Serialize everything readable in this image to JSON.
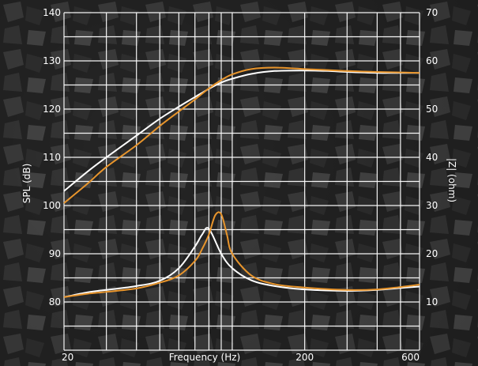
{
  "chart_data": {
    "type": "line",
    "title": "",
    "xlabel": "Frequency (Hz)",
    "ylabel_left": "SPL (dB)",
    "ylabel_right": "|Z| (ohm)",
    "x_scale": "log",
    "xlim": [
      20,
      600
    ],
    "ylim_left": [
      70,
      140
    ],
    "ylim_right": [
      0,
      70
    ],
    "x_tick_labels": [
      "20",
      "200",
      "600"
    ],
    "x_ticks": [
      20,
      200,
      600
    ],
    "y_left_ticks": [
      80,
      90,
      100,
      110,
      120,
      130,
      140
    ],
    "y_right_ticks": [
      10,
      20,
      30,
      40,
      50,
      60,
      70
    ],
    "grid": true,
    "colors": {
      "white": "#ffffff",
      "orange": "#e8952c",
      "grid": "#ffffff"
    },
    "series": [
      {
        "axis": "left",
        "color": "#ffffff",
        "x": [
          20,
          25,
          30,
          40,
          50,
          60,
          70,
          80,
          90,
          100,
          120,
          150,
          200,
          250,
          300,
          400,
          500,
          600
        ],
        "y": [
          103,
          107,
          110,
          114.5,
          118,
          120.5,
          122.5,
          124.2,
          125.5,
          126.3,
          127.3,
          127.9,
          128.0,
          127.9,
          127.7,
          127.5,
          127.5,
          127.5
        ]
      },
      {
        "axis": "left",
        "color": "#e8952c",
        "x": [
          20,
          25,
          30,
          40,
          50,
          60,
          70,
          80,
          90,
          100,
          120,
          150,
          200,
          250,
          300,
          400,
          500,
          600
        ],
        "y": [
          100.5,
          104.5,
          108,
          112.5,
          116.5,
          119.5,
          122,
          124.3,
          126,
          127.2,
          128.3,
          128.6,
          128.3,
          128.1,
          127.9,
          127.7,
          127.6,
          127.5
        ]
      },
      {
        "axis": "right",
        "color": "#ffffff",
        "x": [
          20,
          25,
          30,
          40,
          50,
          60,
          70,
          75,
          80,
          90,
          100,
          120,
          150,
          200,
          300,
          400,
          500,
          600
        ],
        "y": [
          11,
          12,
          12.5,
          13.3,
          14.4,
          17,
          21.5,
          24,
          25.2,
          20,
          17,
          14.5,
          13.3,
          12.6,
          12.3,
          12.5,
          12.9,
          13.2
        ]
      },
      {
        "axis": "right",
        "color": "#e8952c",
        "x": [
          20,
          25,
          30,
          40,
          50,
          60,
          70,
          75,
          80,
          85,
          90,
          95,
          100,
          120,
          150,
          200,
          300,
          400,
          500,
          600
        ],
        "y": [
          11,
          11.7,
          12.1,
          12.8,
          14,
          15.5,
          18.5,
          21,
          24,
          28,
          28.2,
          24,
          20,
          15.5,
          13.7,
          13,
          12.5,
          12.6,
          13.1,
          13.6
        ]
      }
    ]
  }
}
